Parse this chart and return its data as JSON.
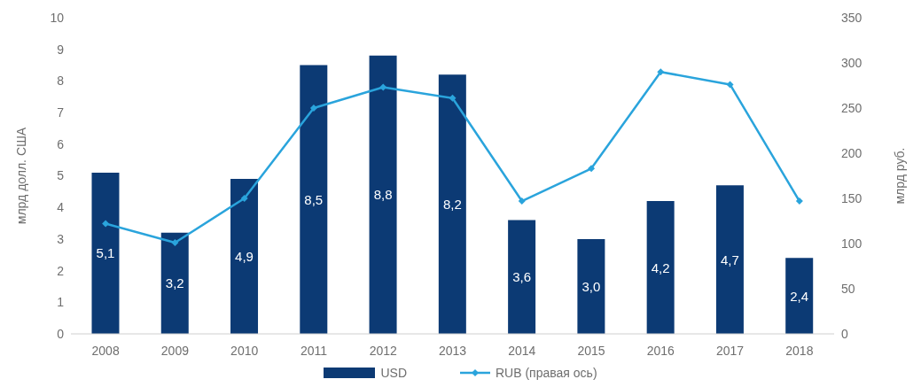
{
  "chart_data": {
    "type": "bar",
    "categories": [
      "2008",
      "2009",
      "2010",
      "2011",
      "2012",
      "2013",
      "2014",
      "2015",
      "2016",
      "2017",
      "2018"
    ],
    "ylabel": "млрд долл. США",
    "y2label": "млрд руб.",
    "series": [
      {
        "name": "USD",
        "color": "#0c3a74",
        "values": [
          5.1,
          3.2,
          4.9,
          8.5,
          8.8,
          8.2,
          3.6,
          3.0,
          4.2,
          4.7,
          2.4
        ],
        "value_labels": [
          "5,1",
          "3,2",
          "4,9",
          "8,5",
          "8,8",
          "8,2",
          "3,6",
          "3,0",
          "4,2",
          "4,7",
          "2,4"
        ]
      },
      {
        "name": "RUB (правая ось)",
        "type": "line",
        "axis": "y2",
        "color": "#2aa4dc",
        "values": [
          122,
          101,
          150,
          250,
          273,
          261,
          147,
          183,
          290,
          276,
          147
        ]
      }
    ],
    "ylim": [
      0,
      10
    ],
    "yticks": [
      0,
      1,
      2,
      3,
      4,
      5,
      6,
      7,
      8,
      9,
      10
    ],
    "y2lim": [
      0,
      350
    ],
    "y2ticks": [
      0,
      50,
      100,
      150,
      200,
      250,
      300,
      350
    ],
    "grid": false,
    "legend": "bottom",
    "marker": "diamond",
    "line_style": "solid"
  }
}
